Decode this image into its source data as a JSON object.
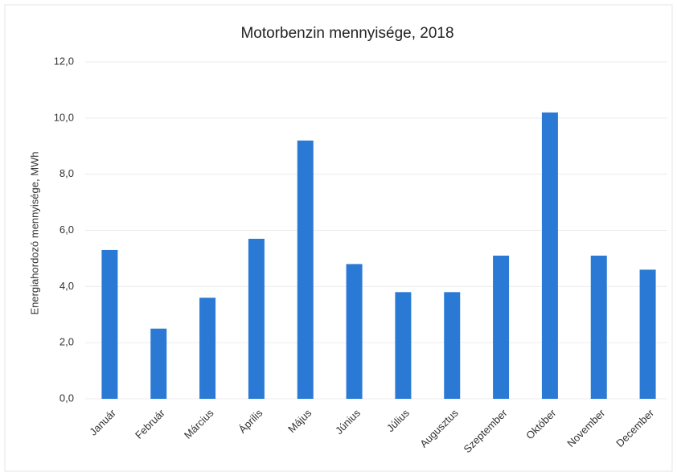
{
  "chart_data": {
    "type": "bar",
    "title": "Motorbenzin mennyisége, 2018",
    "y_axis_label": "Energiahordozó mennyisége, MWh",
    "categories": [
      "Január",
      "Február",
      "Március",
      "Április",
      "Május",
      "Június",
      "Július",
      "Augusztus",
      "Szeptember",
      "Október",
      "November",
      "December"
    ],
    "values": [
      5.3,
      2.5,
      3.6,
      5.7,
      9.2,
      4.8,
      3.8,
      3.8,
      5.1,
      10.2,
      5.1,
      4.6
    ],
    "color": "#2a7ad5",
    "ylim": [
      0,
      12
    ],
    "yticks": [
      {
        "value": 0,
        "label": "0,0"
      },
      {
        "value": 2,
        "label": "2,0"
      },
      {
        "value": 4,
        "label": "4,0"
      },
      {
        "value": 6,
        "label": "6,0"
      },
      {
        "value": 8,
        "label": "8,0"
      },
      {
        "value": 10,
        "label": "10,0"
      },
      {
        "value": 12,
        "label": "12,0"
      }
    ],
    "grid": true
  }
}
